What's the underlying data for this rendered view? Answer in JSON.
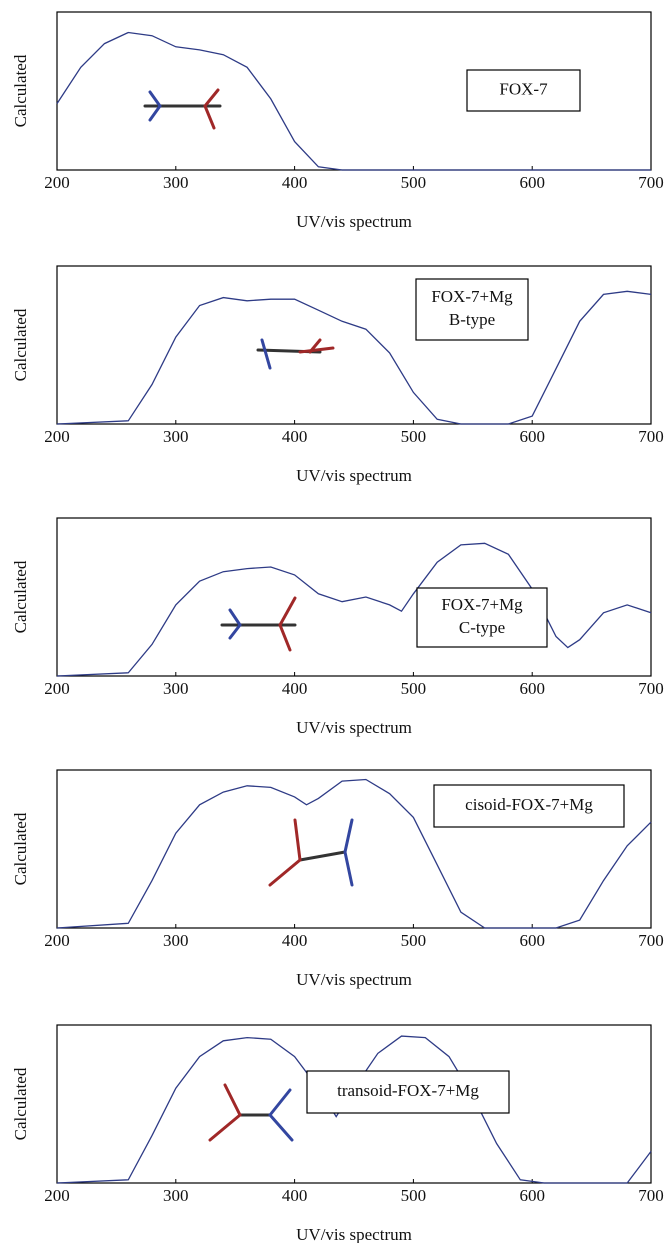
{
  "chart_data": [
    {
      "type": "line",
      "ylabel": "Calculated",
      "xlabel": "UV/vis spectrum",
      "annotation": [
        "FOX-7"
      ],
      "color": "#2e3b86",
      "x": [
        200,
        220,
        240,
        260,
        280,
        300,
        320,
        340,
        360,
        380,
        400,
        420,
        440,
        500,
        600,
        700
      ],
      "values": [
        0.42,
        0.65,
        0.8,
        0.87,
        0.85,
        0.78,
        0.76,
        0.73,
        0.65,
        0.45,
        0.18,
        0.02,
        0,
        0,
        0,
        0
      ],
      "xlim": [
        200,
        700
      ],
      "ylim": [
        0,
        1
      ],
      "xticks": [
        200,
        300,
        400,
        500,
        600,
        700
      ]
    },
    {
      "type": "line",
      "ylabel": "Calculated",
      "xlabel": "UV/vis spectrum",
      "annotation": [
        "FOX-7+Mg",
        "B-type"
      ],
      "color": "#2e3b86",
      "x": [
        200,
        260,
        280,
        300,
        320,
        340,
        360,
        380,
        400,
        420,
        440,
        460,
        480,
        500,
        520,
        540,
        580,
        600,
        620,
        640,
        660,
        680,
        700
      ],
      "values": [
        0,
        0.02,
        0.25,
        0.55,
        0.75,
        0.8,
        0.78,
        0.79,
        0.79,
        0.72,
        0.65,
        0.6,
        0.45,
        0.2,
        0.03,
        0,
        0,
        0.05,
        0.35,
        0.65,
        0.82,
        0.84,
        0.82
      ],
      "xlim": [
        200,
        700
      ],
      "ylim": [
        0,
        1
      ],
      "xticks": [
        200,
        300,
        400,
        500,
        600,
        700
      ]
    },
    {
      "type": "line",
      "ylabel": "Calculated",
      "xlabel": "UV/vis spectrum",
      "annotation": [
        "FOX-7+Mg",
        "C-type"
      ],
      "color": "#2e3b86",
      "x": [
        200,
        260,
        280,
        300,
        320,
        340,
        360,
        380,
        400,
        420,
        440,
        460,
        480,
        490,
        500,
        520,
        540,
        560,
        580,
        600,
        620,
        630,
        640,
        660,
        680,
        700
      ],
      "values": [
        0,
        0.02,
        0.2,
        0.45,
        0.6,
        0.66,
        0.68,
        0.69,
        0.64,
        0.52,
        0.47,
        0.5,
        0.45,
        0.41,
        0.52,
        0.72,
        0.83,
        0.84,
        0.77,
        0.55,
        0.25,
        0.18,
        0.23,
        0.4,
        0.45,
        0.4
      ],
      "xlim": [
        200,
        700
      ],
      "ylim": [
        0,
        1
      ],
      "xticks": [
        200,
        300,
        400,
        500,
        600,
        700
      ]
    },
    {
      "type": "line",
      "ylabel": "Calculated",
      "xlabel": "UV/vis spectrum",
      "annotation": [
        "cisoid-FOX-7+Mg"
      ],
      "color": "#2e3b86",
      "x": [
        200,
        260,
        280,
        300,
        320,
        340,
        360,
        380,
        400,
        410,
        420,
        440,
        460,
        480,
        500,
        520,
        540,
        560,
        620,
        640,
        660,
        680,
        700
      ],
      "values": [
        0,
        0.03,
        0.3,
        0.6,
        0.78,
        0.86,
        0.9,
        0.89,
        0.83,
        0.78,
        0.82,
        0.93,
        0.94,
        0.85,
        0.7,
        0.4,
        0.1,
        0,
        0,
        0.05,
        0.3,
        0.52,
        0.67
      ],
      "xlim": [
        200,
        700
      ],
      "ylim": [
        0,
        1
      ],
      "xticks": [
        200,
        300,
        400,
        500,
        600,
        700
      ]
    },
    {
      "type": "line",
      "ylabel": "Calculated",
      "xlabel": "UV/vis spectrum",
      "annotation": [
        "transoid-FOX-7+Mg"
      ],
      "color": "#2e3b86",
      "x": [
        200,
        260,
        280,
        300,
        320,
        340,
        360,
        380,
        400,
        420,
        435,
        450,
        470,
        490,
        510,
        530,
        550,
        570,
        590,
        610,
        680,
        700
      ],
      "values": [
        0,
        0.02,
        0.3,
        0.6,
        0.8,
        0.9,
        0.92,
        0.91,
        0.8,
        0.6,
        0.42,
        0.6,
        0.82,
        0.93,
        0.92,
        0.8,
        0.55,
        0.25,
        0.02,
        0,
        0,
        0.2
      ],
      "xlim": [
        200,
        700
      ],
      "ylim": [
        0,
        1
      ],
      "xticks": [
        200,
        300,
        400,
        500,
        600,
        700
      ]
    }
  ]
}
